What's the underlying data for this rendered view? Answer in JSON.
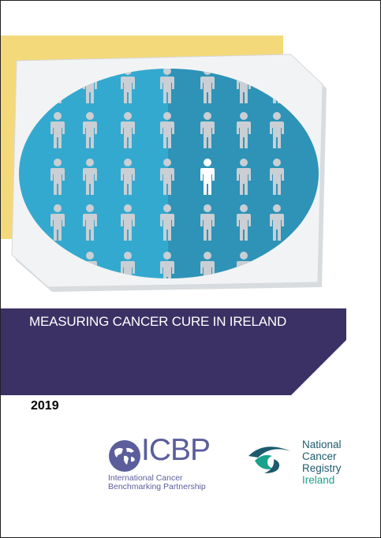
{
  "document": {
    "title": "MEASURING CANCER CURE IN IRELAND",
    "year": "2019"
  },
  "logos": {
    "icbp": {
      "acronym": "ICBP",
      "subtitle_line1": "International Cancer",
      "subtitle_line2": "Benchmarking Partnership"
    },
    "ncr": {
      "line1": "National",
      "line2": "Cancer",
      "line3": "Registry",
      "line4": "Ireland"
    }
  },
  "colors": {
    "yellow": "#f4d97a",
    "band": "#3b3164",
    "oval": "#2ea3c8",
    "figure": "#c9cfd4",
    "highlight_figure": "#ffffff"
  }
}
